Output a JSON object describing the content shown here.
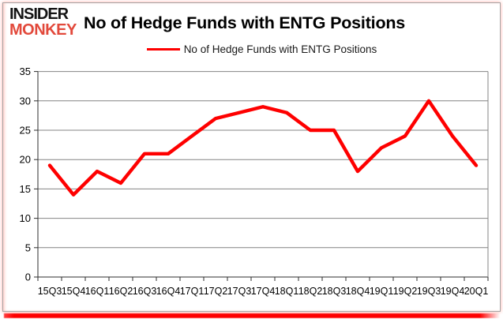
{
  "brand": {
    "line1": "INSIDER",
    "line2": "MONKEY",
    "line2_color": "#e2493b"
  },
  "header": {
    "title": "No of Hedge Funds with ENTG Positions"
  },
  "legend": {
    "label": "No of Hedge Funds with ENTG Positions",
    "line_color": "#fe0000"
  },
  "colors": {
    "series_red": "#fe0000",
    "brand_red": "#e2493b",
    "gridline_gray": "#848484",
    "axis_dark": "#2e2e2e",
    "frame_border": "#a6a6a6",
    "bottom_bar_red": "#fe0000"
  },
  "chart_data": {
    "type": "line",
    "title": "No of Hedge Funds with ENTG Positions",
    "categories": [
      "15Q3",
      "15Q4",
      "16Q1",
      "16Q2",
      "16Q3",
      "16Q4",
      "17Q1",
      "17Q2",
      "17Q3",
      "17Q4",
      "18Q1",
      "18Q2",
      "18Q3",
      "18Q4",
      "19Q1",
      "19Q2",
      "19Q3",
      "19Q4",
      "20Q1"
    ],
    "series": [
      {
        "name": "No of Hedge Funds with ENTG Positions",
        "color": "#fe0000",
        "values": [
          19,
          14,
          18,
          16,
          21,
          21,
          24,
          27,
          28,
          29,
          28,
          25,
          25,
          18,
          22,
          24,
          30,
          24,
          19
        ]
      }
    ],
    "xlabel": "",
    "ylabel": "",
    "ylim": [
      0,
      35
    ],
    "yticks": [
      0,
      5,
      10,
      15,
      20,
      25,
      30,
      35
    ],
    "grid": "horizontal",
    "legend_position": "top-center"
  }
}
